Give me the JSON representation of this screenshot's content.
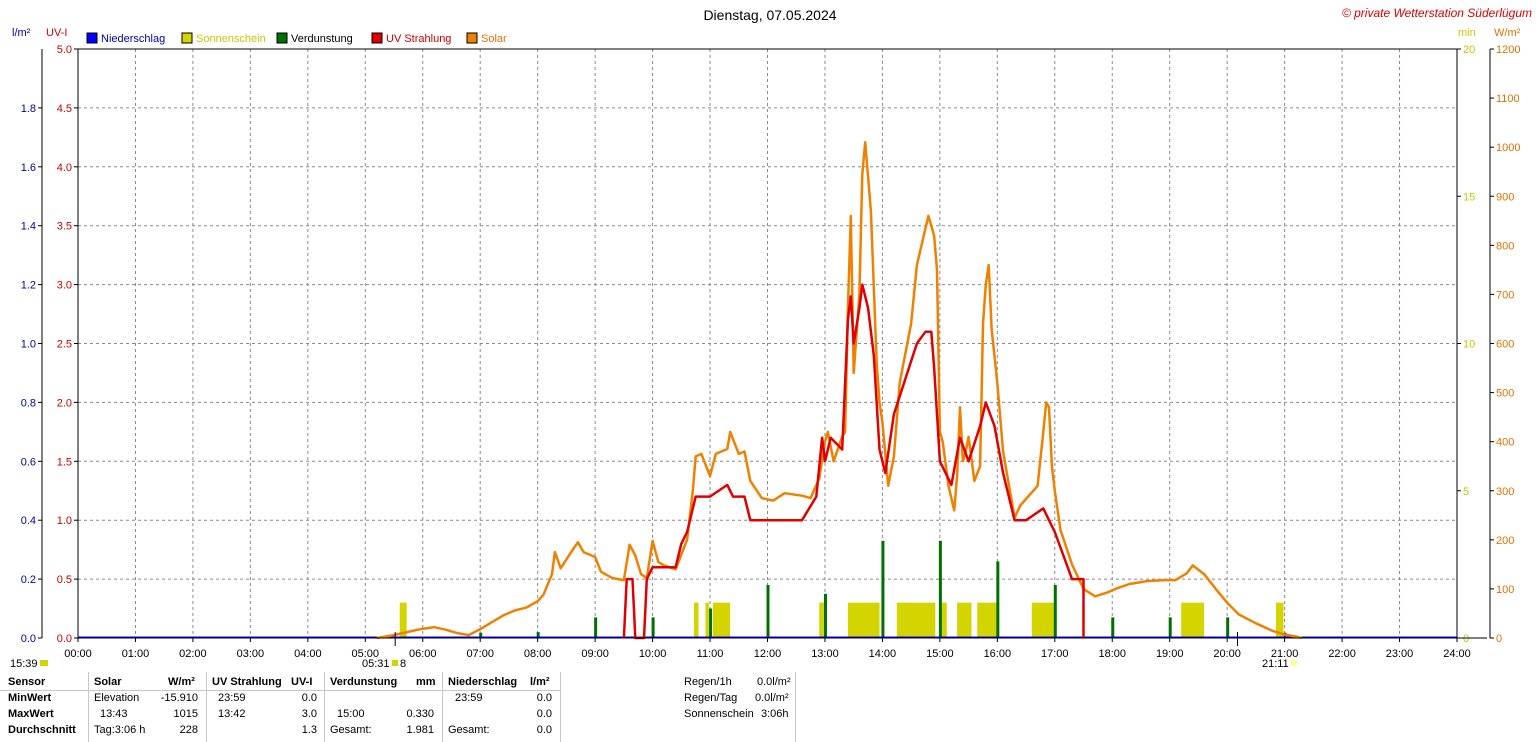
{
  "header": {
    "title": "Dienstag, 07.05.2024",
    "copyright": "© private Wetterstation Süderlügum",
    "left_unit_1": "l/m²",
    "left_unit_2": "UV-I",
    "right_unit_1": "min",
    "right_unit_2": "W/m²"
  },
  "legend": [
    {
      "label": "Niederschlag",
      "color": "#0000ff",
      "text_color": "#0000aa"
    },
    {
      "label": "Sonnenschein",
      "color": "#d4d400",
      "text_color": "#c8c800"
    },
    {
      "label": "Verdunstung",
      "color": "#007000",
      "text_color": "#000000"
    },
    {
      "label": "UV Strahlung",
      "color": "#e00000",
      "text_color": "#cc0000"
    },
    {
      "label": "Solar",
      "color": "#f08000",
      "text_color": "#e07000"
    }
  ],
  "sun_markers": {
    "left_time": "15:39",
    "sunrise": "05:31",
    "sunrise_extra": "8",
    "sunset": "21:11"
  },
  "chart_data": {
    "type": "line",
    "x_ticks": [
      "00:00",
      "01:00",
      "02:00",
      "03:00",
      "04:00",
      "05:00",
      "06:00",
      "07:00",
      "08:00",
      "09:00",
      "10:00",
      "11:00",
      "12:00",
      "13:00",
      "14:00",
      "15:00",
      "16:00",
      "17:00",
      "18:00",
      "19:00",
      "20:00",
      "21:00",
      "22:00",
      "23:00",
      "24:00"
    ],
    "xlim": [
      0,
      24
    ],
    "axes": {
      "rain_lm2": {
        "ticks": [
          "0.0",
          "0.2",
          "0.4",
          "0.6",
          "0.8",
          "1.0",
          "1.2",
          "1.4",
          "1.6",
          "1.8"
        ],
        "range": [
          0,
          2.0
        ]
      },
      "uv_index": {
        "ticks": [
          "0.0",
          "0.5",
          "1.0",
          "1.5",
          "2.0",
          "2.5",
          "3.0",
          "3.5",
          "4.0",
          "4.5",
          "5.0"
        ],
        "range": [
          0,
          5.0
        ]
      },
      "sunshine_min": {
        "ticks": [
          "0",
          "5",
          "10",
          "15",
          "20"
        ],
        "range": [
          0,
          20
        ]
      },
      "solar_wm2": {
        "ticks": [
          "0",
          "100",
          "200",
          "300",
          "400",
          "500",
          "600",
          "700",
          "800",
          "900",
          "1000",
          "1100",
          "1200"
        ],
        "range": [
          0,
          1200
        ]
      }
    },
    "grid": true,
    "series": [
      {
        "name": "Solar",
        "color": "#f08000",
        "axis": "solar_wm2",
        "points": [
          [
            5.2,
            0
          ],
          [
            5.5,
            6
          ],
          [
            5.8,
            14
          ],
          [
            6.0,
            19
          ],
          [
            6.2,
            22
          ],
          [
            6.4,
            17
          ],
          [
            6.6,
            10
          ],
          [
            6.8,
            6
          ],
          [
            7.0,
            18
          ],
          [
            7.2,
            32
          ],
          [
            7.4,
            46
          ],
          [
            7.6,
            56
          ],
          [
            7.8,
            62
          ],
          [
            8.0,
            75
          ],
          [
            8.1,
            88
          ],
          [
            8.25,
            130
          ],
          [
            8.3,
            175
          ],
          [
            8.4,
            142
          ],
          [
            8.6,
            178
          ],
          [
            8.7,
            195
          ],
          [
            8.8,
            175
          ],
          [
            9.0,
            165
          ],
          [
            9.1,
            135
          ],
          [
            9.3,
            122
          ],
          [
            9.5,
            118
          ],
          [
            9.6,
            190
          ],
          [
            9.7,
            168
          ],
          [
            9.8,
            130
          ],
          [
            9.9,
            122
          ],
          [
            10.0,
            198
          ],
          [
            10.1,
            155
          ],
          [
            10.2,
            148
          ],
          [
            10.4,
            140
          ],
          [
            10.5,
            170
          ],
          [
            10.6,
            200
          ],
          [
            10.7,
            300
          ],
          [
            10.75,
            370
          ],
          [
            10.85,
            375
          ],
          [
            11.0,
            330
          ],
          [
            11.1,
            375
          ],
          [
            11.3,
            385
          ],
          [
            11.35,
            420
          ],
          [
            11.5,
            375
          ],
          [
            11.6,
            380
          ],
          [
            11.7,
            320
          ],
          [
            11.9,
            285
          ],
          [
            12.1,
            280
          ],
          [
            12.3,
            295
          ],
          [
            12.6,
            290
          ],
          [
            12.75,
            285
          ],
          [
            12.9,
            325
          ],
          [
            13.0,
            400
          ],
          [
            13.05,
            420
          ],
          [
            13.15,
            360
          ],
          [
            13.3,
            410
          ],
          [
            13.35,
            420
          ],
          [
            13.4,
            670
          ],
          [
            13.45,
            860
          ],
          [
            13.5,
            540
          ],
          [
            13.6,
            700
          ],
          [
            13.65,
            945
          ],
          [
            13.7,
            1010
          ],
          [
            13.8,
            870
          ],
          [
            13.9,
            560
          ],
          [
            13.95,
            480
          ],
          [
            14.0,
            440
          ],
          [
            14.1,
            310
          ],
          [
            14.2,
            370
          ],
          [
            14.3,
            520
          ],
          [
            14.5,
            640
          ],
          [
            14.6,
            760
          ],
          [
            14.8,
            860
          ],
          [
            14.9,
            820
          ],
          [
            14.95,
            750
          ],
          [
            15.0,
            420
          ],
          [
            15.05,
            400
          ],
          [
            15.15,
            310
          ],
          [
            15.25,
            260
          ],
          [
            15.3,
            330
          ],
          [
            15.35,
            470
          ],
          [
            15.4,
            360
          ],
          [
            15.45,
            380
          ],
          [
            15.5,
            410
          ],
          [
            15.6,
            320
          ],
          [
            15.7,
            350
          ],
          [
            15.75,
            640
          ],
          [
            15.8,
            720
          ],
          [
            15.85,
            760
          ],
          [
            15.9,
            630
          ],
          [
            16.0,
            520
          ],
          [
            16.1,
            380
          ],
          [
            16.3,
            245
          ],
          [
            16.4,
            270
          ],
          [
            16.55,
            290
          ],
          [
            16.7,
            310
          ],
          [
            16.8,
            420
          ],
          [
            16.85,
            480
          ],
          [
            16.9,
            470
          ],
          [
            16.95,
            350
          ],
          [
            17.0,
            300
          ],
          [
            17.1,
            220
          ],
          [
            17.3,
            150
          ],
          [
            17.5,
            100
          ],
          [
            17.7,
            85
          ],
          [
            17.9,
            92
          ],
          [
            18.1,
            102
          ],
          [
            18.3,
            110
          ],
          [
            18.6,
            116
          ],
          [
            18.9,
            118
          ],
          [
            19.1,
            118
          ],
          [
            19.3,
            132
          ],
          [
            19.4,
            148
          ],
          [
            19.6,
            130
          ],
          [
            19.8,
            100
          ],
          [
            20.0,
            72
          ],
          [
            20.2,
            48
          ],
          [
            20.5,
            30
          ],
          [
            20.8,
            14
          ],
          [
            21.0,
            7
          ],
          [
            21.2,
            3
          ],
          [
            21.3,
            0
          ]
        ]
      },
      {
        "name": "UV Strahlung",
        "color": "#e00000",
        "axis": "uv_index",
        "points": [
          [
            9.5,
            0
          ],
          [
            9.55,
            0.5
          ],
          [
            9.65,
            0.5
          ],
          [
            9.7,
            0
          ],
          [
            9.85,
            0
          ],
          [
            9.9,
            0.5
          ],
          [
            10.0,
            0.6
          ],
          [
            10.4,
            0.6
          ],
          [
            10.5,
            0.8
          ],
          [
            10.6,
            0.9
          ],
          [
            10.7,
            1.1
          ],
          [
            10.75,
            1.2
          ],
          [
            10.9,
            1.2
          ],
          [
            11.0,
            1.2
          ],
          [
            11.3,
            1.3
          ],
          [
            11.4,
            1.2
          ],
          [
            11.6,
            1.2
          ],
          [
            11.7,
            1.0
          ],
          [
            11.9,
            1.0
          ],
          [
            12.2,
            1.0
          ],
          [
            12.6,
            1.0
          ],
          [
            12.85,
            1.2
          ],
          [
            12.95,
            1.7
          ],
          [
            13.0,
            1.5
          ],
          [
            13.1,
            1.7
          ],
          [
            13.3,
            1.6
          ],
          [
            13.4,
            2.7
          ],
          [
            13.45,
            2.9
          ],
          [
            13.5,
            2.5
          ],
          [
            13.6,
            2.8
          ],
          [
            13.65,
            3.0
          ],
          [
            13.75,
            2.8
          ],
          [
            13.85,
            2.4
          ],
          [
            13.95,
            1.6
          ],
          [
            14.05,
            1.4
          ],
          [
            14.2,
            1.9
          ],
          [
            14.4,
            2.2
          ],
          [
            14.6,
            2.5
          ],
          [
            14.75,
            2.6
          ],
          [
            14.85,
            2.6
          ],
          [
            14.9,
            2.3
          ],
          [
            15.0,
            1.5
          ],
          [
            15.2,
            1.3
          ],
          [
            15.35,
            1.7
          ],
          [
            15.5,
            1.5
          ],
          [
            15.7,
            1.8
          ],
          [
            15.8,
            2.0
          ],
          [
            15.95,
            1.8
          ],
          [
            16.1,
            1.4
          ],
          [
            16.3,
            1.0
          ],
          [
            16.5,
            1.0
          ],
          [
            16.8,
            1.1
          ],
          [
            16.9,
            1.0
          ],
          [
            17.0,
            0.9
          ],
          [
            17.15,
            0.7
          ],
          [
            17.3,
            0.5
          ],
          [
            17.5,
            0.5
          ],
          [
            17.5,
            0.0
          ]
        ]
      }
    ],
    "sunshine_blocks": [
      [
        5.6,
        5.72
      ],
      [
        10.72,
        10.8
      ],
      [
        10.92,
        10.98
      ],
      [
        11.05,
        11.35
      ],
      [
        12.9,
        12.98
      ],
      [
        13.4,
        13.95
      ],
      [
        14.25,
        14.92
      ],
      [
        15.02,
        15.12
      ],
      [
        15.3,
        15.55
      ],
      [
        15.65,
        16.0
      ],
      [
        16.6,
        17.0
      ],
      [
        19.2,
        19.6
      ],
      [
        20.85,
        20.98
      ]
    ],
    "sunshine_block_height_min": 1.2,
    "evaporation_bars": [
      [
        7.0,
        0.018
      ],
      [
        8.0,
        0.02
      ],
      [
        9.0,
        0.07
      ],
      [
        10.0,
        0.07
      ],
      [
        11.0,
        0.1
      ],
      [
        12.0,
        0.18
      ],
      [
        13.0,
        0.15
      ],
      [
        14.0,
        0.33
      ],
      [
        15.0,
        0.33
      ],
      [
        16.0,
        0.26
      ],
      [
        17.0,
        0.18
      ],
      [
        18.0,
        0.07
      ],
      [
        19.0,
        0.07
      ],
      [
        20.0,
        0.07
      ],
      [
        21.0,
        0.018
      ]
    ]
  },
  "footer": {
    "headers": {
      "sensor": "Sensor",
      "solar": "Solar",
      "solar_unit": "W/m²",
      "uv": "UV Strahlung",
      "uv_unit": "UV-I",
      "evap": "Verdunstung",
      "evap_unit": "mm",
      "rain": "Niederschlag",
      "rain_unit": "l/m²"
    },
    "rows": [
      {
        "label": "MinWert",
        "solar_time": "Elevation",
        "solar_val": "-15.910",
        "uv_time": "23:59",
        "uv_val": "0.0",
        "evap_time": "",
        "evap_val": "",
        "rain_time": "23:59",
        "rain_val": "0.0"
      },
      {
        "label": "MaxWert",
        "solar_time": "13:43",
        "solar_val": "1015",
        "uv_time": "13:42",
        "uv_val": "3.0",
        "evap_time": "15:00",
        "evap_val": "0.330",
        "rain_time": "",
        "rain_val": "0.0"
      },
      {
        "label": "Durchschnitt",
        "solar_time": "Tag:3:06 h",
        "solar_val": "228",
        "uv_time": "",
        "uv_val": "1.3",
        "evap_time": "Gesamt:",
        "evap_val": "1.981",
        "rain_time": "Gesamt:",
        "rain_val": "0.0"
      }
    ],
    "summary": [
      {
        "label": "Regen/1h",
        "value": "0.0l/m²"
      },
      {
        "label": "Regen/Tag",
        "value": "0.0l/m²"
      },
      {
        "label": "Sonnenschein",
        "value": "3:06h"
      }
    ]
  }
}
